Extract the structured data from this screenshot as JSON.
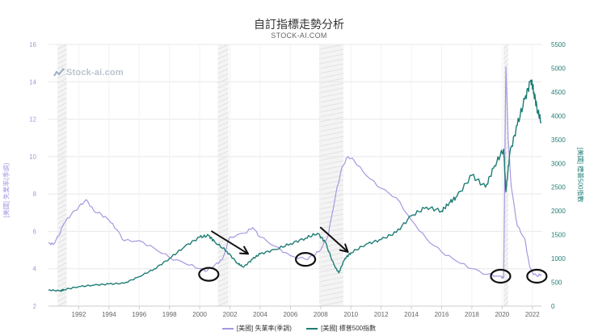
{
  "header": {
    "title": "自訂指標走勢分析",
    "subtitle": "STOCK-AI.COM"
  },
  "watermark": "Stock-ai.com",
  "colors": {
    "unemployment": "#a798e0",
    "sp500": "#1e7d74",
    "band": "#ececec",
    "grid": "#e8e8e8"
  },
  "legend": {
    "unemployment": "[美國] 失業率(季調)",
    "sp500": "[美國] 標普500指數"
  },
  "chart_data": {
    "type": "line",
    "title": "自訂指標走勢分析",
    "x_range": [
      1990.0,
      2022.6
    ],
    "x_ticks": [
      "1992",
      "1994",
      "1996",
      "1998",
      "2000",
      "2002",
      "2004",
      "2006",
      "2008",
      "2010",
      "2012",
      "2014",
      "2016",
      "2018",
      "2020",
      "2022"
    ],
    "y_left": {
      "label": "[美國] 失業率(季調)",
      "range": [
        2,
        16
      ],
      "ticks": [
        "2",
        "4",
        "6",
        "8",
        "10",
        "12",
        "14",
        "16"
      ]
    },
    "y_right": {
      "label": "[美國] 標普500指數",
      "range": [
        0,
        5500
      ],
      "ticks": [
        "0",
        "500",
        "1000",
        "1500",
        "2000",
        "2500",
        "3000",
        "3500",
        "4000",
        "4500",
        "5000",
        "5500"
      ]
    },
    "recession_bands": [
      [
        1990.6,
        1991.2
      ],
      [
        2001.2,
        2001.9
      ],
      [
        2007.9,
        2009.5
      ],
      [
        2020.1,
        2020.4
      ]
    ],
    "grid": true,
    "legend_position": "bottom",
    "series": [
      {
        "name": "[美國] 失業率(季調)",
        "axis": "left",
        "points": [
          [
            1990.0,
            5.4
          ],
          [
            1990.3,
            5.3
          ],
          [
            1990.7,
            5.8
          ],
          [
            1991.0,
            6.4
          ],
          [
            1991.5,
            6.9
          ],
          [
            1992.0,
            7.3
          ],
          [
            1992.5,
            7.7
          ],
          [
            1993.0,
            7.1
          ],
          [
            1993.5,
            6.9
          ],
          [
            1994.0,
            6.6
          ],
          [
            1994.5,
            6.1
          ],
          [
            1995.0,
            5.5
          ],
          [
            1996.0,
            5.5
          ],
          [
            1997.0,
            5.1
          ],
          [
            1998.0,
            4.6
          ],
          [
            1999.0,
            4.3
          ],
          [
            2000.0,
            4.0
          ],
          [
            2000.5,
            3.9
          ],
          [
            2001.0,
            4.2
          ],
          [
            2001.5,
            4.5
          ],
          [
            2002.0,
            5.7
          ],
          [
            2003.0,
            5.9
          ],
          [
            2003.5,
            6.2
          ],
          [
            2004.0,
            5.7
          ],
          [
            2005.0,
            5.2
          ],
          [
            2006.0,
            4.7
          ],
          [
            2007.0,
            4.5
          ],
          [
            2007.5,
            4.7
          ],
          [
            2008.0,
            5.0
          ],
          [
            2008.5,
            5.8
          ],
          [
            2009.0,
            8.0
          ],
          [
            2009.4,
            9.4
          ],
          [
            2009.8,
            10.0
          ],
          [
            2010.2,
            9.8
          ],
          [
            2011.0,
            9.0
          ],
          [
            2012.0,
            8.3
          ],
          [
            2013.0,
            7.8
          ],
          [
            2014.0,
            6.6
          ],
          [
            2015.0,
            5.6
          ],
          [
            2016.0,
            4.9
          ],
          [
            2017.0,
            4.4
          ],
          [
            2018.0,
            4.0
          ],
          [
            2019.0,
            3.7
          ],
          [
            2019.9,
            3.6
          ],
          [
            2020.1,
            3.5
          ],
          [
            2020.25,
            14.8
          ],
          [
            2020.4,
            11.0
          ],
          [
            2020.6,
            8.4
          ],
          [
            2021.0,
            6.3
          ],
          [
            2021.5,
            5.6
          ],
          [
            2021.8,
            4.2
          ],
          [
            2022.0,
            3.8
          ],
          [
            2022.3,
            3.6
          ],
          [
            2022.6,
            3.7
          ]
        ]
      },
      {
        "name": "[美國] 標普500指數",
        "axis": "right",
        "points": [
          [
            1990.0,
            340
          ],
          [
            1990.8,
            320
          ],
          [
            1991.0,
            345
          ],
          [
            1992.0,
            410
          ],
          [
            1993.0,
            440
          ],
          [
            1994.0,
            465
          ],
          [
            1995.0,
            480
          ],
          [
            1996.0,
            620
          ],
          [
            1997.0,
            780
          ],
          [
            1998.0,
            1000
          ],
          [
            1999.0,
            1250
          ],
          [
            2000.0,
            1450
          ],
          [
            2000.6,
            1480
          ],
          [
            2001.0,
            1350
          ],
          [
            2001.8,
            1150
          ],
          [
            2002.5,
            900
          ],
          [
            2002.9,
            820
          ],
          [
            2003.5,
            990
          ],
          [
            2004.0,
            1100
          ],
          [
            2005.0,
            1190
          ],
          [
            2006.0,
            1310
          ],
          [
            2007.0,
            1430
          ],
          [
            2007.8,
            1530
          ],
          [
            2008.3,
            1350
          ],
          [
            2008.9,
            850
          ],
          [
            2009.2,
            700
          ],
          [
            2009.6,
            1000
          ],
          [
            2010.0,
            1120
          ],
          [
            2011.0,
            1300
          ],
          [
            2012.0,
            1400
          ],
          [
            2013.0,
            1550
          ],
          [
            2014.0,
            1900
          ],
          [
            2015.0,
            2080
          ],
          [
            2016.0,
            2000
          ],
          [
            2016.5,
            2170
          ],
          [
            2017.0,
            2300
          ],
          [
            2018.0,
            2750
          ],
          [
            2018.9,
            2500
          ],
          [
            2019.5,
            2950
          ],
          [
            2020.1,
            3300
          ],
          [
            2020.25,
            2400
          ],
          [
            2020.5,
            3200
          ],
          [
            2021.0,
            3800
          ],
          [
            2021.5,
            4350
          ],
          [
            2021.9,
            4750
          ],
          [
            2022.1,
            4500
          ],
          [
            2022.35,
            4100
          ],
          [
            2022.6,
            3850
          ]
        ]
      }
    ],
    "annotations": [
      {
        "type": "arrow",
        "from": [
          2000.8,
          6.0
        ],
        "to": [
          2003.2,
          4.8
        ]
      },
      {
        "type": "arrow",
        "from": [
          2008.0,
          6.2
        ],
        "to": [
          2009.8,
          4.9
        ]
      },
      {
        "type": "circle",
        "center": [
          2000.6,
          3.7
        ]
      },
      {
        "type": "circle",
        "center": [
          2007.0,
          4.5
        ]
      },
      {
        "type": "circle",
        "center": [
          2019.9,
          3.6
        ]
      },
      {
        "type": "circle",
        "center": [
          2022.3,
          3.6
        ]
      }
    ]
  }
}
